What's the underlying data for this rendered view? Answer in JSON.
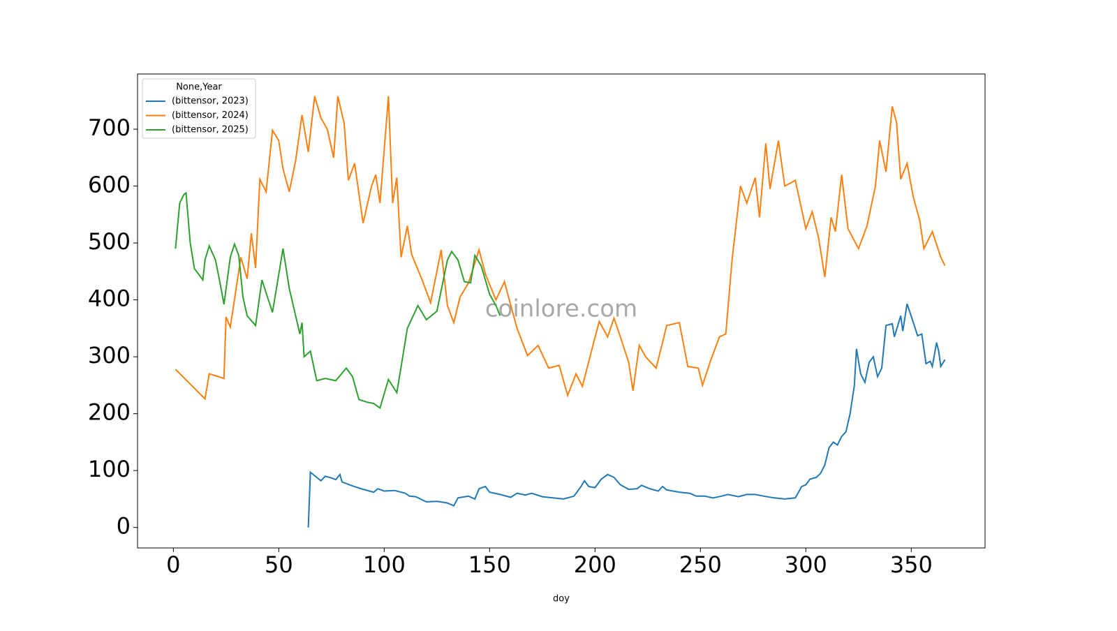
{
  "chart_data": {
    "type": "line",
    "xlabel": "doy",
    "watermark": "coinlore.com",
    "legend_title": "None,Year",
    "legend": "upper left",
    "grid": false,
    "xlim": [
      -17,
      385
    ],
    "ylim": [
      -36,
      797
    ],
    "xticks": [
      0,
      50,
      100,
      150,
      200,
      250,
      300,
      350
    ],
    "yticks": [
      0,
      100,
      200,
      300,
      400,
      500,
      600,
      700
    ],
    "series": [
      {
        "name": "(bittensor, 2023)",
        "color": "#1f77b4",
        "x": [
          64,
          65,
          68,
          70,
          72,
          75,
          77,
          79,
          80,
          85,
          90,
          95,
          97,
          100,
          105,
          110,
          112,
          115,
          120,
          125,
          130,
          133,
          135,
          140,
          143,
          145,
          148,
          150,
          155,
          160,
          163,
          167,
          170,
          175,
          180,
          185,
          190,
          193,
          195,
          197,
          200,
          203,
          206,
          209,
          212,
          216,
          220,
          222,
          226,
          230,
          232,
          234,
          240,
          245,
          248,
          252,
          256,
          260,
          263,
          268,
          272,
          276,
          280,
          285,
          290,
          295,
          298,
          300,
          302,
          305,
          307,
          309,
          311,
          313,
          315,
          317,
          319,
          321,
          323,
          324,
          326,
          328,
          330,
          332,
          334,
          336,
          338,
          341,
          342,
          345,
          346,
          348,
          351,
          353,
          355,
          357,
          359,
          360,
          362,
          363,
          364,
          366
        ],
        "values": [
          0,
          97,
          88,
          82,
          90,
          87,
          84,
          93,
          80,
          73,
          67,
          62,
          68,
          64,
          65,
          60,
          55,
          54,
          45,
          46,
          43,
          38,
          52,
          55,
          50,
          68,
          72,
          62,
          58,
          53,
          60,
          57,
          60,
          54,
          52,
          50,
          55,
          70,
          82,
          72,
          70,
          85,
          93,
          88,
          75,
          67,
          68,
          74,
          68,
          64,
          72,
          66,
          62,
          60,
          55,
          55,
          52,
          55,
          58,
          54,
          58,
          58,
          55,
          52,
          50,
          52,
          72,
          75,
          85,
          88,
          95,
          110,
          140,
          150,
          145,
          160,
          168,
          200,
          250,
          314,
          270,
          255,
          290,
          300,
          265,
          280,
          355,
          358,
          335,
          372,
          345,
          393,
          360,
          337,
          340,
          288,
          292,
          283,
          325,
          310,
          283,
          295
        ]
      },
      {
        "name": "(bittensor, 2024)",
        "color": "#ff7f0e",
        "x": [
          1,
          15,
          17,
          24,
          25,
          27,
          32,
          35,
          37,
          39,
          41,
          44,
          47,
          50,
          52,
          55,
          58,
          61,
          64,
          67,
          70,
          73,
          76,
          78,
          81,
          83,
          86,
          90,
          94,
          96,
          98,
          102,
          104,
          106,
          108,
          111,
          113,
          118,
          122,
          127,
          130,
          133,
          136,
          140,
          145,
          148,
          153,
          157,
          163,
          168,
          173,
          178,
          183,
          187,
          191,
          194,
          199,
          202,
          206,
          209,
          212,
          216,
          218,
          221,
          224,
          229,
          234,
          240,
          244,
          249,
          251,
          255,
          259,
          262,
          265,
          269,
          272,
          276,
          278,
          281,
          283,
          287,
          290,
          295,
          300,
          303,
          306,
          309,
          312,
          314,
          317,
          320,
          325,
          329,
          333,
          335,
          338,
          341,
          343,
          345,
          348,
          351,
          354,
          356,
          358,
          360,
          364,
          366
        ],
        "values": [
          278,
          226,
          270,
          262,
          370,
          352,
          475,
          437,
          517,
          456,
          612,
          590,
          698,
          680,
          630,
          590,
          645,
          725,
          660,
          758,
          720,
          700,
          650,
          758,
          710,
          610,
          640,
          535,
          600,
          620,
          570,
          758,
          570,
          615,
          475,
          530,
          480,
          435,
          395,
          488,
          390,
          360,
          405,
          430,
          488,
          445,
          400,
          432,
          350,
          302,
          320,
          280,
          285,
          232,
          270,
          248,
          320,
          362,
          335,
          368,
          335,
          290,
          240,
          320,
          300,
          280,
          355,
          360,
          283,
          280,
          250,
          295,
          335,
          340,
          470,
          600,
          570,
          615,
          545,
          675,
          595,
          680,
          600,
          610,
          525,
          555,
          510,
          440,
          545,
          520,
          620,
          525,
          490,
          530,
          600,
          680,
          625,
          740,
          712,
          612,
          640,
          580,
          540,
          490,
          505,
          520,
          475,
          460
        ]
      },
      {
        "name": "(bittensor, 2025)",
        "color": "#2ca02c",
        "x": [
          1,
          3,
          5,
          6,
          8,
          10,
          14,
          15,
          17,
          20,
          22,
          24,
          27,
          29,
          31,
          33,
          35,
          39,
          42,
          47,
          52,
          55,
          60,
          61,
          62,
          65,
          68,
          72,
          77,
          82,
          85,
          88,
          92,
          95,
          98,
          102,
          106,
          108,
          111,
          116,
          120,
          125,
          130,
          132,
          135,
          138,
          141,
          143,
          146,
          150,
          153,
          155
        ],
        "values": [
          490,
          570,
          585,
          588,
          500,
          455,
          435,
          470,
          495,
          470,
          432,
          392,
          475,
          498,
          478,
          405,
          372,
          355,
          435,
          378,
          490,
          420,
          340,
          360,
          300,
          310,
          258,
          262,
          258,
          280,
          265,
          225,
          220,
          218,
          210,
          260,
          237,
          282,
          350,
          390,
          365,
          380,
          470,
          485,
          470,
          432,
          430,
          478,
          460,
          410,
          390,
          372
        ]
      }
    ]
  }
}
